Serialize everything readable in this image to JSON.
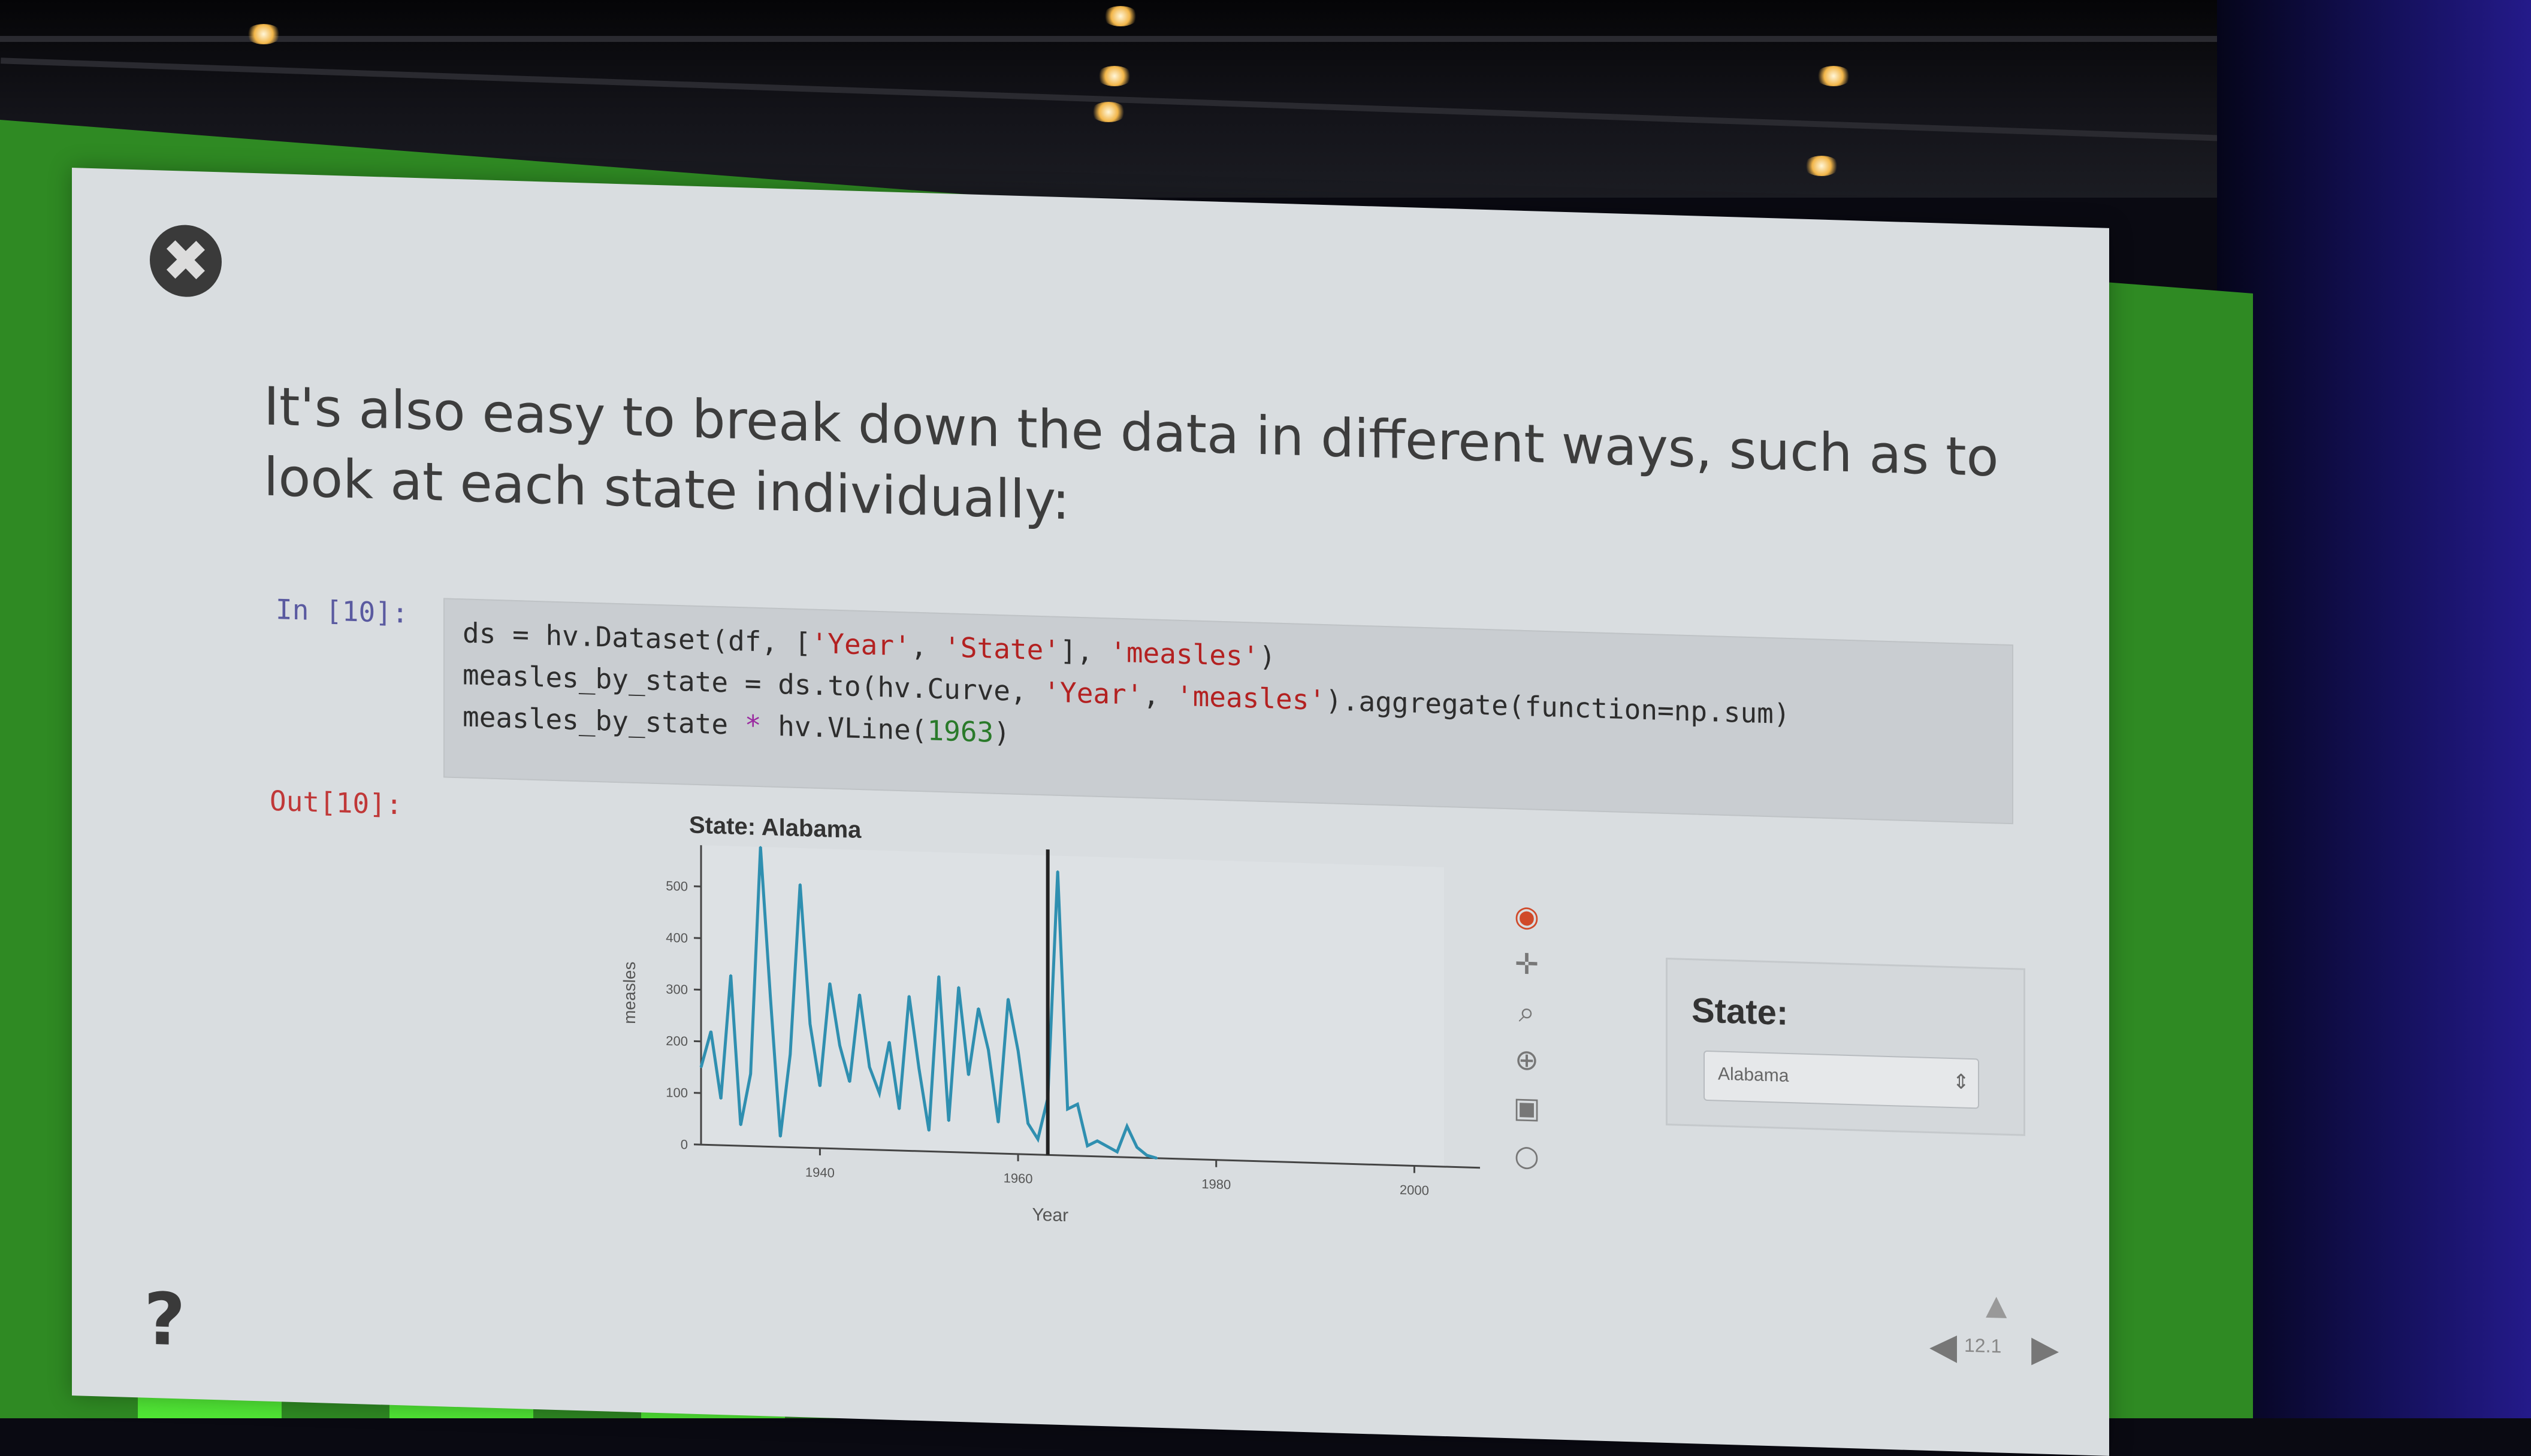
{
  "slide": {
    "close_glyph": "✖",
    "headline": "It's also easy to break down the data in different ways, such as to look at each state individually:",
    "in_prompt": "In [10]:",
    "out_prompt": "Out[10]:",
    "code": {
      "line1": [
        "ds = hv.Dataset(df, [",
        "'Year'",
        ", ",
        "'State'",
        "], ",
        "'measles'",
        ")"
      ],
      "line2": [
        "measles_by_state = ds.to(hv.Curve, ",
        "'Year'",
        ", ",
        "'measles'",
        ").aggregate(function=np.sum)"
      ],
      "line3": [
        "measles_by_state ",
        "*",
        " hv.VLine(",
        "1963",
        ")"
      ]
    },
    "help_glyph": "?",
    "nav": {
      "counter": "12.1",
      "up": "▲",
      "left": "◀",
      "right": "▶"
    }
  },
  "widget": {
    "label": "State:",
    "selected": "Alabama",
    "arrow": "⇕"
  },
  "toolbar": {
    "icons": [
      "logo-icon",
      "pan-icon",
      "zoom-icon",
      "wheel-zoom-icon",
      "save-icon",
      "reset-icon"
    ],
    "glyphs": [
      "◉",
      "✛",
      "⌕",
      "⊕",
      "▣",
      "○"
    ]
  },
  "colors": {
    "curve": "#2f8fb0",
    "vline": "#222222",
    "slide_bg": "#d9dde0",
    "stage_green": "#2f8a23"
  },
  "chart_data": {
    "type": "line",
    "title": "State: Alabama",
    "xlabel": "Year",
    "ylabel": "measles",
    "xlim": [
      1928,
      2003
    ],
    "ylim": [
      0,
      580
    ],
    "xticks": [
      1940,
      1960,
      1980,
      2000
    ],
    "yticks": [
      0,
      100,
      200,
      300,
      400,
      500
    ],
    "vline": 1963,
    "series": [
      {
        "x": [
          1928,
          1929,
          1930,
          1931,
          1932,
          1933,
          1934,
          1935,
          1936,
          1937,
          1938,
          1939,
          1940,
          1941,
          1942,
          1943,
          1944,
          1945,
          1946,
          1947,
          1948,
          1949,
          1950,
          1951,
          1952,
          1953,
          1954,
          1955,
          1956,
          1957,
          1958,
          1959,
          1960,
          1961,
          1962,
          1963,
          1964,
          1965,
          1966,
          1967,
          1968,
          1969,
          1970,
          1971,
          1972,
          1973,
          1974
        ],
        "y": [
          150,
          220,
          90,
          330,
          40,
          140,
          580,
          290,
          20,
          180,
          510,
          240,
          120,
          320,
          200,
          130,
          300,
          160,
          110,
          210,
          80,
          300,
          160,
          40,
          340,
          60,
          320,
          150,
          280,
          200,
          60,
          300,
          200,
          60,
          30,
          110,
          550,
          90,
          100,
          20,
          30,
          20,
          10,
          60,
          20,
          5,
          0
        ]
      }
    ]
  }
}
